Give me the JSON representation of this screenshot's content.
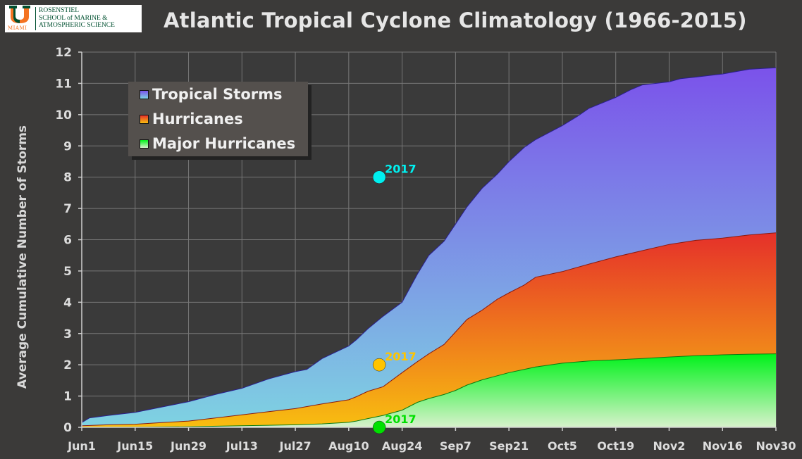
{
  "header": {
    "title": "Atlantic Tropical Cyclone Climatology (1966-2015)",
    "logo": {
      "line1": "ROSENSTIEL",
      "line2": "SCHOOL of MARINE &",
      "line3": "ATMOSPHERIC SCIENCE",
      "miami": "MIAMI"
    }
  },
  "colors": {
    "background": "#3b3a39",
    "plot_background": "#3a3a3a",
    "grid": "#777777",
    "ts_top": "#7b52ea",
    "ts_bottom": "#7ed3e2",
    "hu_top": "#e5302a",
    "hu_bottom": "#f8be10",
    "mh_top": "#00f21a",
    "mh_bottom": "#d8f2cc",
    "marker_ts": "#00f0f0",
    "marker_hu": "#ffc400",
    "marker_mh": "#00e000"
  },
  "chart_data": {
    "type": "area",
    "title": "Atlantic Tropical Cyclone Climatology (1966-2015)",
    "xlabel": "",
    "ylabel": "Average Cumulative Number of Storms",
    "xlim": [
      0,
      182
    ],
    "ylim": [
      0,
      12
    ],
    "grid": true,
    "legend_position": "top-left",
    "x_ticks": [
      {
        "day": 0,
        "label": "Jun1"
      },
      {
        "day": 14,
        "label": "Jun15"
      },
      {
        "day": 28,
        "label": "Jun29"
      },
      {
        "day": 42,
        "label": "Jul13"
      },
      {
        "day": 56,
        "label": "Jul27"
      },
      {
        "day": 70,
        "label": "Aug10"
      },
      {
        "day": 84,
        "label": "Aug24"
      },
      {
        "day": 98,
        "label": "Sep7"
      },
      {
        "day": 112,
        "label": "Sep21"
      },
      {
        "day": 126,
        "label": "Oct5"
      },
      {
        "day": 140,
        "label": "Oct19"
      },
      {
        "day": 154,
        "label": "Nov2"
      },
      {
        "day": 168,
        "label": "Nov16"
      },
      {
        "day": 182,
        "label": "Nov30"
      }
    ],
    "y_ticks": [
      0,
      1,
      2,
      3,
      4,
      5,
      6,
      7,
      8,
      9,
      10,
      11,
      12
    ],
    "series": [
      {
        "name": "Tropical Storms",
        "x": [
          0,
          2,
          7,
          14,
          21,
          28,
          35,
          42,
          49,
          56,
          59,
          63,
          70,
          72,
          75,
          79,
          84,
          88,
          91,
          95,
          98,
          101,
          105,
          109,
          112,
          116,
          119,
          126,
          130,
          133,
          140,
          144,
          147,
          154,
          157,
          161,
          168,
          175,
          182
        ],
        "y": [
          0.15,
          0.3,
          0.38,
          0.48,
          0.65,
          0.82,
          1.05,
          1.25,
          1.55,
          1.78,
          1.85,
          2.2,
          2.6,
          2.8,
          3.15,
          3.55,
          4.0,
          4.9,
          5.5,
          5.95,
          6.5,
          7.05,
          7.65,
          8.1,
          8.5,
          8.95,
          9.2,
          9.65,
          9.95,
          10.2,
          10.55,
          10.8,
          10.95,
          11.05,
          11.15,
          11.2,
          11.3,
          11.45,
          11.5
        ]
      },
      {
        "name": "Hurricanes",
        "x": [
          0,
          7,
          14,
          21,
          28,
          35,
          42,
          49,
          56,
          63,
          70,
          72,
          75,
          79,
          84,
          88,
          91,
          95,
          98,
          101,
          105,
          109,
          112,
          116,
          119,
          126,
          133,
          140,
          147,
          154,
          161,
          168,
          175,
          182
        ],
        "y": [
          0.05,
          0.08,
          0.1,
          0.15,
          0.2,
          0.3,
          0.4,
          0.5,
          0.6,
          0.75,
          0.88,
          0.98,
          1.15,
          1.3,
          1.75,
          2.1,
          2.35,
          2.65,
          3.05,
          3.45,
          3.75,
          4.1,
          4.3,
          4.55,
          4.8,
          4.98,
          5.22,
          5.45,
          5.65,
          5.85,
          5.98,
          6.05,
          6.15,
          6.22
        ]
      },
      {
        "name": "Major Hurricanes",
        "x": [
          0,
          14,
          28,
          42,
          56,
          63,
          70,
          72,
          75,
          79,
          84,
          88,
          91,
          95,
          98,
          101,
          105,
          109,
          112,
          116,
          119,
          126,
          133,
          140,
          147,
          154,
          161,
          168,
          175,
          182
        ],
        "y": [
          0.0,
          0.01,
          0.02,
          0.05,
          0.08,
          0.11,
          0.16,
          0.2,
          0.28,
          0.38,
          0.55,
          0.8,
          0.92,
          1.05,
          1.18,
          1.35,
          1.52,
          1.65,
          1.75,
          1.85,
          1.93,
          2.05,
          2.12,
          2.16,
          2.2,
          2.25,
          2.29,
          2.32,
          2.34,
          2.35
        ]
      }
    ],
    "annotations": [
      {
        "series": "Tropical Storms",
        "label": "2017",
        "x": 78,
        "y": 8.0
      },
      {
        "series": "Hurricanes",
        "label": "2017",
        "x": 78,
        "y": 2.0
      },
      {
        "series": "Major Hurricanes",
        "label": "2017",
        "x": 78,
        "y": 0.0
      }
    ]
  }
}
